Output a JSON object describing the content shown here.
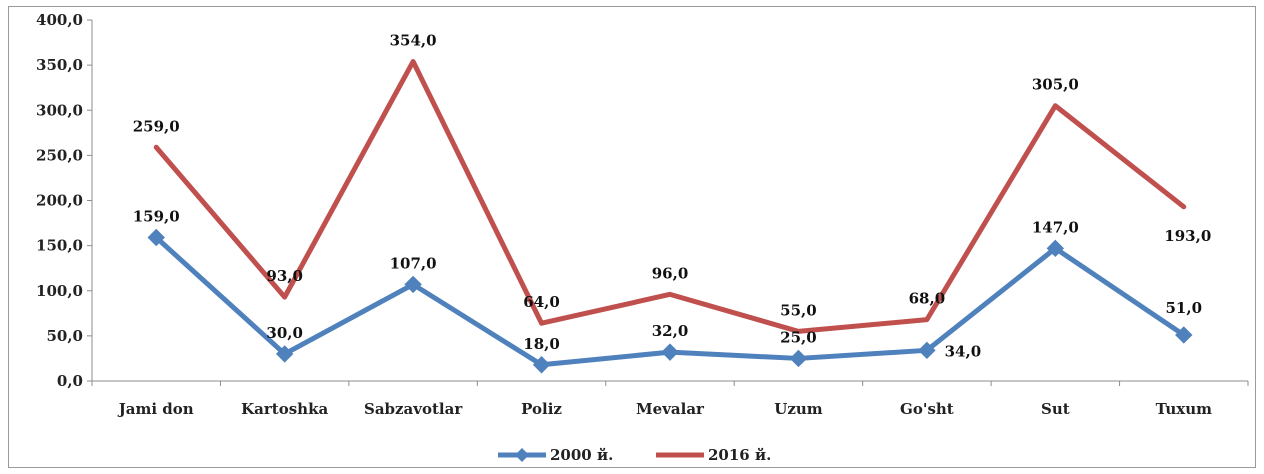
{
  "chart_data": {
    "type": "line",
    "categories": [
      "Jami don",
      "Kartoshka",
      "Sabzavotlar",
      "Poliz",
      "Mevalar",
      "Uzum",
      "Go'sht",
      "Sut",
      "Tuxum"
    ],
    "series": [
      {
        "name": "2000 й.",
        "color": "#4f81bd",
        "marker": "diamond",
        "values": [
          159,
          30,
          107,
          18,
          32,
          25,
          34,
          147,
          51
        ],
        "labels": [
          "159,0",
          "30,0",
          "107,0",
          "18,0",
          "32,0",
          "25,0",
          "34,0",
          "147,0",
          "51,0"
        ]
      },
      {
        "name": "2016 й.",
        "color": "#c0504d",
        "marker": "none",
        "values": [
          259,
          93,
          354,
          64,
          96,
          55,
          68,
          305,
          193
        ],
        "labels": [
          "259,0",
          "93,0",
          "354,0",
          "64,0",
          "96,0",
          "55,0",
          "68,0",
          "305,0",
          "193,0"
        ]
      }
    ],
    "yticks": [
      "0,0",
      "50,0",
      "100,0",
      "150,0",
      "200,0",
      "250,0",
      "300,0",
      "350,0",
      "400,0"
    ],
    "ylim": [
      0,
      400
    ],
    "grid": false,
    "legend_position": "bottom"
  }
}
